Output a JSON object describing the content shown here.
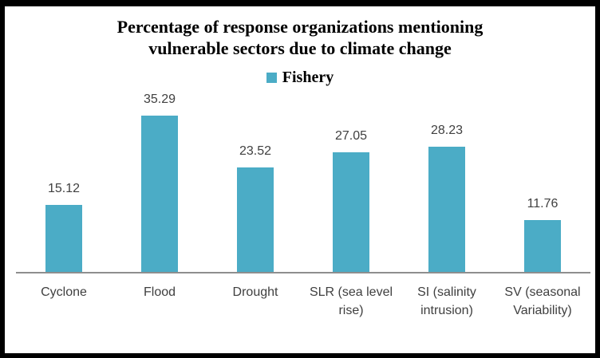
{
  "title": {
    "lines": [
      "Percentage of response organizations mentioning",
      "vulnerable sectors due to climate change"
    ]
  },
  "legend": {
    "label": "Fishery",
    "swatch_color": "#4BACC6"
  },
  "chart_data": {
    "type": "bar",
    "title": "Percentage of response organizations mentioning vulnerable sectors due to climate change",
    "series_name": "Fishery",
    "categories": [
      "Cyclone",
      "Flood",
      "Drought",
      "SLR (sea level rise)",
      "SI (salinity intrusion)",
      "SV (seasonal Variability)"
    ],
    "values": [
      15.12,
      35.29,
      23.52,
      27.05,
      28.23,
      11.76
    ],
    "data_labels": [
      "15.12",
      "35.29",
      "23.52",
      "27.05",
      "28.23",
      "11.76"
    ],
    "bar_color": "#4BACC6",
    "axis_line_color": "#8e8e8e",
    "ylim": [
      0,
      40
    ],
    "grid": false,
    "legend_position": "top"
  }
}
